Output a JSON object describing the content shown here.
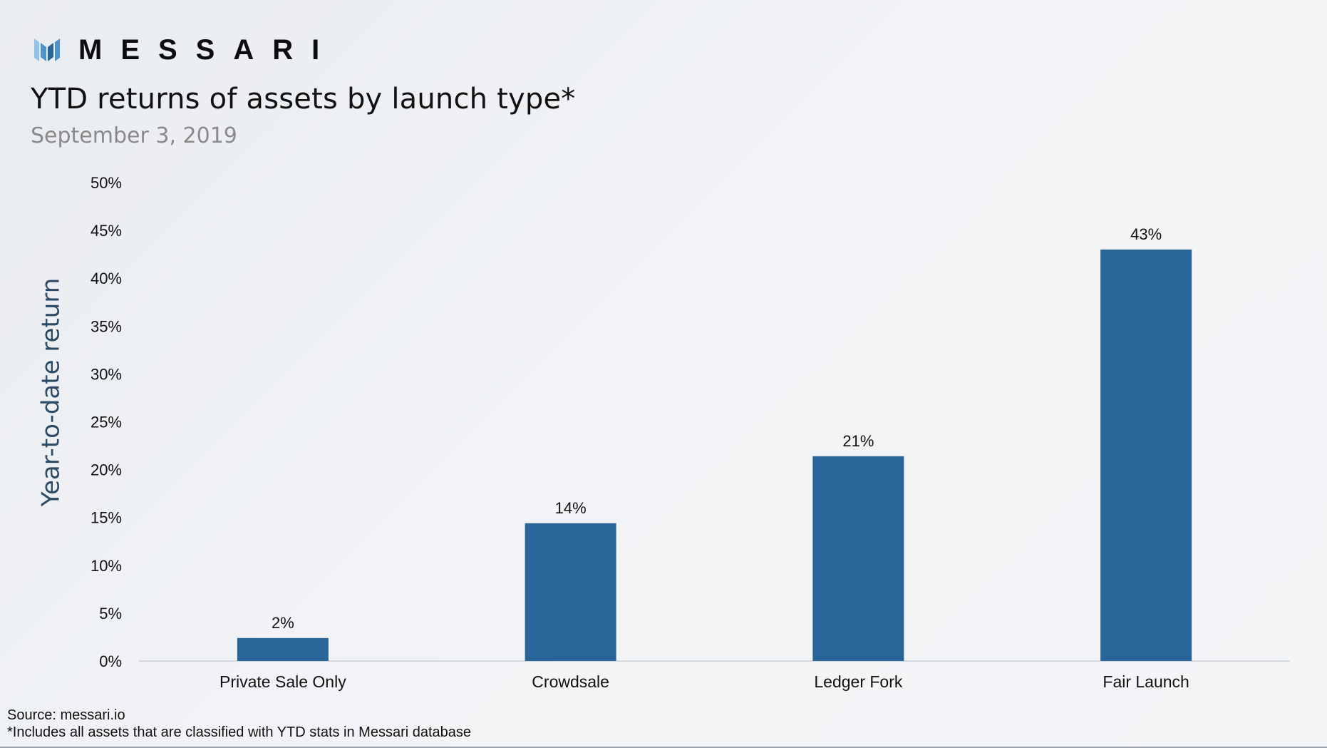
{
  "brand": {
    "name": "MESSARI",
    "logo_icon": "messari-logo-icon"
  },
  "colors": {
    "bar": "#2a6599",
    "text": "#111111",
    "subtitle": "#8a8a8a",
    "axis_label": "#2c4a66",
    "baseline": "#c9cdd2",
    "logo_light": "#8fc3ea",
    "logo_mid": "#4f93cd",
    "logo_dark": "#2a6599"
  },
  "footer": {
    "source": "Source: messari.io",
    "note": "*Includes all assets that are classified with YTD stats in Messari database"
  },
  "chart_data": {
    "type": "bar",
    "title": "YTD returns of assets by launch type*",
    "subtitle": "September 3, 2019",
    "xlabel": "",
    "ylabel": "Year-to-date return",
    "categories": [
      "Private Sale Only",
      "Crowdsale",
      "Ledger Fork",
      "Fair Launch"
    ],
    "values": [
      2.4,
      14.4,
      21.4,
      43.0
    ],
    "data_labels": [
      "2%",
      "14%",
      "21%",
      "43%"
    ],
    "ylim": [
      0,
      50
    ],
    "yticks": [
      0,
      5,
      10,
      15,
      20,
      25,
      30,
      35,
      40,
      45,
      50
    ],
    "ytick_labels": [
      "0%",
      "5%",
      "10%",
      "15%",
      "20%",
      "25%",
      "30%",
      "35%",
      "40%",
      "45%",
      "50%"
    ],
    "grid": false,
    "legend": "none"
  }
}
